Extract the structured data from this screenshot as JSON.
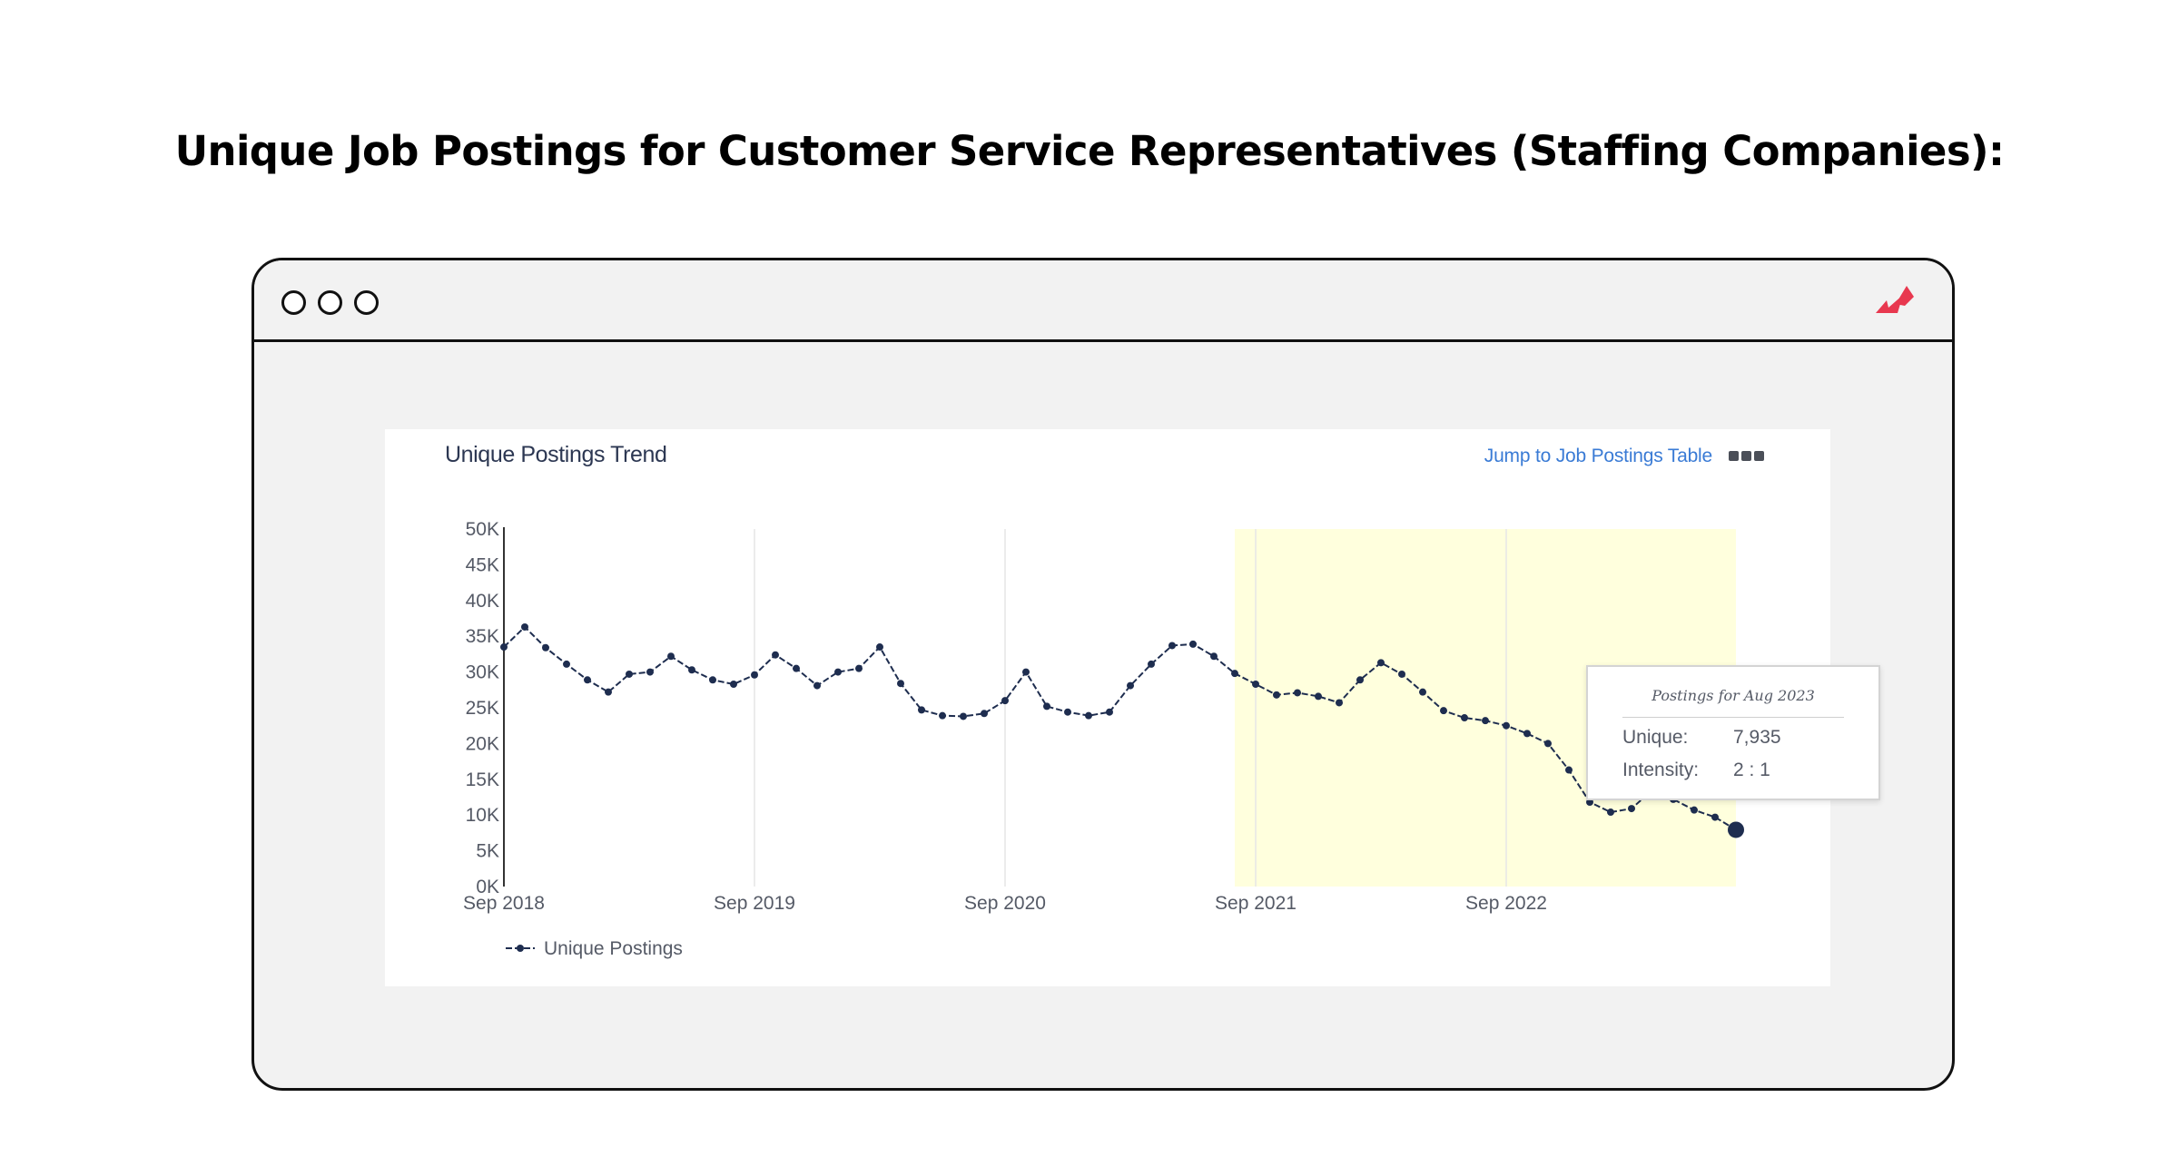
{
  "page": {
    "heading": "Unique Job Postings for Customer Service Representatives (Staffing Companies):"
  },
  "colors": {
    "line": "#1e2d4f",
    "highlight": "#ffffdd",
    "accent_link": "#3a7bd5",
    "logo": "#e8384f"
  },
  "icons": {
    "window_controls": [
      "window-dot-icon",
      "window-dot-icon",
      "window-dot-icon"
    ],
    "brand": "brand-logo-icon",
    "menu": "more-menu-icon"
  },
  "panel": {
    "title": "Unique Postings Trend",
    "jump_link": "Jump to Job Postings Table"
  },
  "tooltip": {
    "title": "Postings for Aug 2023",
    "rows": [
      {
        "key": "Unique:",
        "value": "7,935"
      },
      {
        "key": "Intensity:",
        "value": "2 : 1"
      }
    ]
  },
  "chart_data": {
    "type": "line",
    "title": "Unique Postings Trend",
    "xlabel": "",
    "ylabel": "",
    "y_ticks": [
      "0K",
      "5K",
      "10K",
      "15K",
      "20K",
      "25K",
      "30K",
      "35K",
      "40K",
      "45K",
      "50K"
    ],
    "ylim": [
      0,
      50000
    ],
    "x_ticks": [
      "Sep 2018",
      "Sep 2019",
      "Sep 2020",
      "Sep 2021",
      "Sep 2022"
    ],
    "x_start": "2018-09",
    "x_end": "2023-08",
    "highlight_range": [
      "2021-08",
      "2023-08"
    ],
    "grid": "vertical lines at yearly ticks",
    "legend": {
      "position": "bottom-left"
    },
    "series": [
      {
        "name": "Unique Postings",
        "style": "dashed line with dot markers",
        "x": [
          "2018-09",
          "2018-10",
          "2018-11",
          "2018-12",
          "2019-01",
          "2019-02",
          "2019-03",
          "2019-04",
          "2019-05",
          "2019-06",
          "2019-07",
          "2019-08",
          "2019-09",
          "2019-10",
          "2019-11",
          "2019-12",
          "2020-01",
          "2020-02",
          "2020-03",
          "2020-04",
          "2020-05",
          "2020-06",
          "2020-07",
          "2020-08",
          "2020-09",
          "2020-10",
          "2020-11",
          "2020-12",
          "2021-01",
          "2021-02",
          "2021-03",
          "2021-04",
          "2021-05",
          "2021-06",
          "2021-07",
          "2021-08",
          "2021-09",
          "2021-10",
          "2021-11",
          "2021-12",
          "2022-01",
          "2022-02",
          "2022-03",
          "2022-04",
          "2022-05",
          "2022-06",
          "2022-07",
          "2022-08",
          "2022-09",
          "2022-10",
          "2022-11",
          "2022-12",
          "2023-01",
          "2023-02",
          "2023-03",
          "2023-04",
          "2023-05",
          "2023-06",
          "2023-07",
          "2023-08"
        ],
        "values": [
          33500,
          36300,
          33400,
          31100,
          28900,
          27200,
          29700,
          30000,
          32200,
          30300,
          28900,
          28300,
          29600,
          32400,
          30500,
          28100,
          30000,
          30500,
          33500,
          28400,
          24700,
          23900,
          23800,
          24200,
          26000,
          30000,
          25200,
          24400,
          23900,
          24400,
          28100,
          31100,
          33700,
          33900,
          32200,
          29800,
          28300,
          26800,
          27100,
          26600,
          25700,
          28900,
          31300,
          29700,
          27200,
          24600,
          23600,
          23200,
          22500,
          21400,
          20000,
          16300,
          11800,
          10400,
          10900,
          13500,
          12200,
          10700,
          9700,
          7935
        ]
      }
    ]
  }
}
